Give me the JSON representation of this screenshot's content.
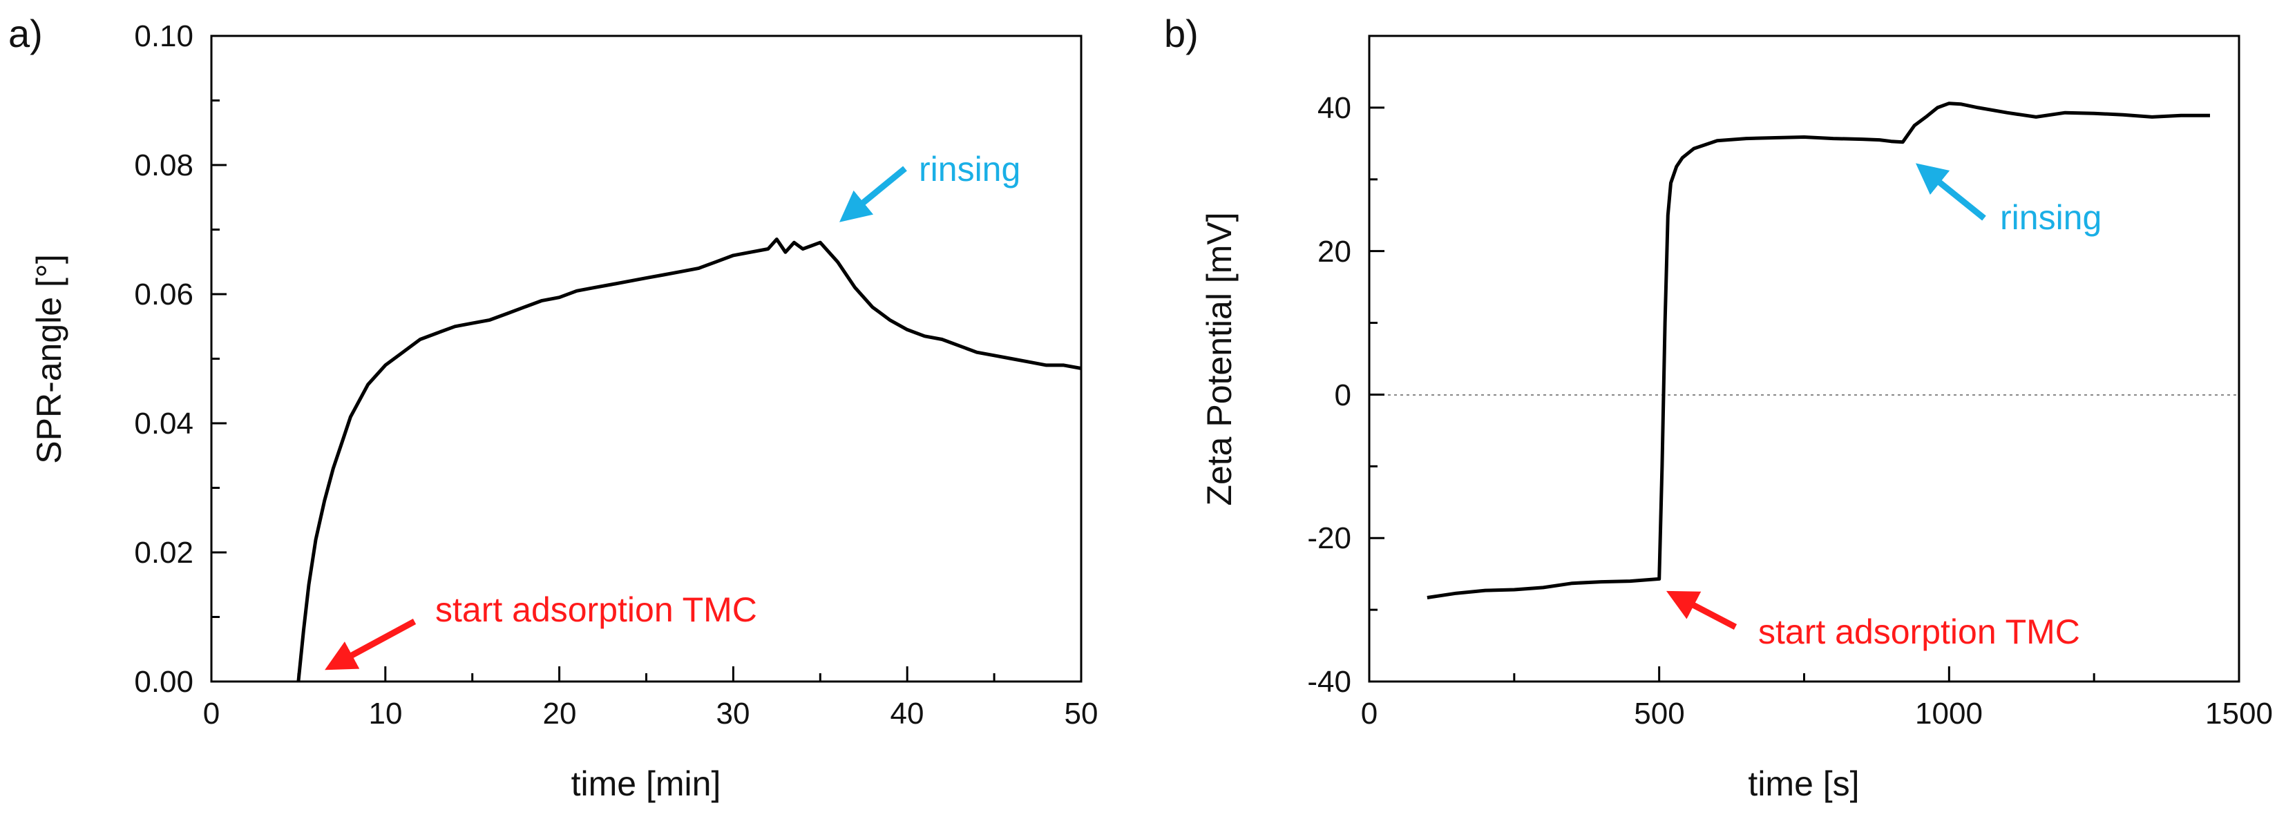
{
  "chart_data": [
    {
      "type": "line",
      "panel_label": "a)",
      "xlabel": "time [min]",
      "ylabel": "SPR-angle [°]",
      "xlim": [
        0,
        50
      ],
      "ylim": [
        0,
        0.1
      ],
      "xticks": [
        "0",
        "10",
        "20",
        "30",
        "40",
        "50"
      ],
      "yticks": [
        "0.00",
        "0.02",
        "0.04",
        "0.06",
        "0.08",
        "0.10"
      ],
      "series": [
        {
          "color": "#000000",
          "x": [
            5.0,
            5.3,
            5.6,
            6.0,
            6.5,
            7.0,
            7.5,
            8.0,
            9.0,
            10.0,
            11.0,
            12.0,
            13.0,
            14.0,
            15.0,
            16.0,
            17.0,
            18.0,
            19.0,
            20.0,
            21.0,
            22.0,
            23.0,
            24.0,
            25.0,
            26.0,
            27.0,
            28.0,
            29.0,
            30.0,
            31.0,
            32.0,
            32.5,
            33.0,
            33.5,
            34.0,
            34.5,
            35.0,
            36.0,
            37.0,
            38.0,
            39.0,
            40.0,
            41.0,
            42.0,
            43.0,
            44.0,
            45.0,
            46.0,
            47.0,
            48.0,
            49.0,
            50.0
          ],
          "y": [
            0.0,
            0.008,
            0.015,
            0.022,
            0.028,
            0.033,
            0.037,
            0.041,
            0.046,
            0.049,
            0.051,
            0.053,
            0.054,
            0.055,
            0.0555,
            0.056,
            0.057,
            0.058,
            0.059,
            0.0595,
            0.0605,
            0.061,
            0.0615,
            0.062,
            0.0625,
            0.063,
            0.0635,
            0.064,
            0.065,
            0.066,
            0.0665,
            0.067,
            0.0685,
            0.0665,
            0.068,
            0.067,
            0.0675,
            0.068,
            0.065,
            0.061,
            0.058,
            0.056,
            0.0545,
            0.0535,
            0.053,
            0.052,
            0.051,
            0.0505,
            0.05,
            0.0495,
            0.049,
            0.049,
            0.0485
          ]
        }
      ],
      "annotations": [
        {
          "text": "rinsing",
          "color": "#1aafe6",
          "points_to": [
            35.0,
            0.068
          ]
        },
        {
          "text": "start adsorption TMC",
          "color": "#ff1a1a",
          "points_to": [
            5.0,
            0.0
          ]
        }
      ]
    },
    {
      "type": "line",
      "panel_label": "b)",
      "xlabel": "time [s]",
      "ylabel": "Zeta Potential [mV]",
      "xlim": [
        0,
        1500
      ],
      "ylim": [
        -40,
        50
      ],
      "xticks": [
        "0",
        "500",
        "1000",
        "1500"
      ],
      "yticks": [
        "-40",
        "-20",
        "0",
        "20",
        "40"
      ],
      "reference_line_y": 0,
      "series": [
        {
          "color": "#000000",
          "x": [
            100,
            150,
            200,
            250,
            300,
            350,
            400,
            450,
            500,
            505,
            510,
            515,
            520,
            530,
            540,
            560,
            600,
            650,
            700,
            750,
            800,
            850,
            880,
            900,
            920,
            940,
            960,
            980,
            1000,
            1020,
            1050,
            1100,
            1150,
            1200,
            1250,
            1300,
            1350,
            1400,
            1450
          ],
          "y": [
            -28.3,
            -27.7,
            -27.3,
            -27.2,
            -26.9,
            -26.3,
            -26.1,
            -26.0,
            -25.7,
            -10,
            10,
            25,
            29.5,
            31.8,
            33.0,
            34.3,
            35.4,
            35.7,
            35.8,
            35.9,
            35.7,
            35.6,
            35.5,
            35.3,
            35.2,
            37.5,
            38.7,
            40.0,
            40.6,
            40.5,
            40.0,
            39.3,
            38.7,
            39.3,
            39.2,
            39.0,
            38.7,
            38.9,
            38.9
          ]
        }
      ],
      "annotations": [
        {
          "text": "rinsing",
          "color": "#1aafe6",
          "points_to": [
            920,
            35.2
          ]
        },
        {
          "text": "start adsorption TMC",
          "color": "#ff1a1a",
          "points_to": [
            505,
            -27.0
          ]
        }
      ]
    }
  ]
}
